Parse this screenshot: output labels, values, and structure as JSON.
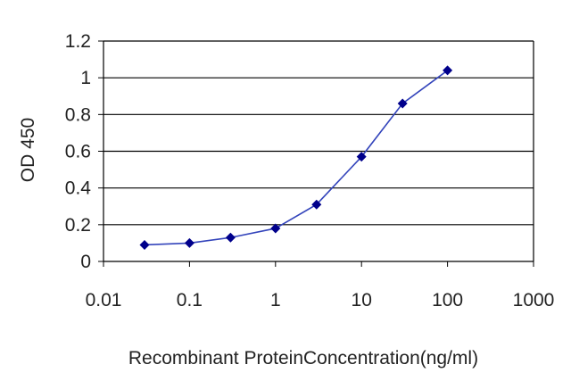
{
  "chart_data": {
    "type": "line",
    "title": "",
    "xlabel": "Recombinant ProteinConcentration(ng/ml)",
    "ylabel": "OD 450",
    "x_scale": "log",
    "xlim": [
      0.01,
      1000
    ],
    "ylim": [
      0,
      1.2
    ],
    "x_ticks": [
      0.01,
      0.1,
      1,
      10,
      100,
      1000
    ],
    "x_tick_labels": [
      "0.01",
      "0.1",
      "1",
      "10",
      "100",
      "1000"
    ],
    "y_ticks": [
      0,
      0.2,
      0.4,
      0.6,
      0.8,
      1,
      1.2
    ],
    "y_tick_labels": [
      "0",
      "0.2",
      "0.4",
      "0.6",
      "0.8",
      "1",
      "1.2"
    ],
    "grid": "horizontal",
    "legend": "none",
    "series": [
      {
        "color": "#3344bb",
        "marker": "diamond",
        "marker_color": "#00008b",
        "x": [
          0.03,
          0.1,
          0.3,
          1,
          3,
          10,
          30,
          100
        ],
        "y": [
          0.09,
          0.1,
          0.13,
          0.18,
          0.31,
          0.57,
          0.86,
          1.04
        ]
      }
    ]
  }
}
